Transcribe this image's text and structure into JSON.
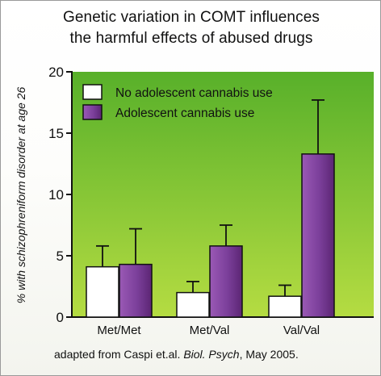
{
  "chart_data": {
    "type": "bar",
    "title_lines": [
      "Genetic variation in COMT influences",
      "the harmful effects of abused drugs"
    ],
    "ylabel": "% with schizophreniform disorder at age 26",
    "xlabel": "",
    "categories": [
      "Met/Met",
      "Met/Val",
      "Val/Val"
    ],
    "ylim": [
      0,
      20
    ],
    "yticks": [
      "0",
      "5",
      "10",
      "15",
      "20"
    ],
    "grid": false,
    "legend_position": "top-left",
    "series": [
      {
        "name": "No adolescent cannabis use",
        "values": [
          4.1,
          2.0,
          1.7
        ],
        "error": [
          1.7,
          0.9,
          0.9
        ],
        "color": "#ffffff"
      },
      {
        "name": "Adolescent cannabis use",
        "values": [
          4.3,
          5.8,
          13.3
        ],
        "error": [
          2.9,
          1.7,
          4.4
        ],
        "color": "#7b3f9a"
      }
    ],
    "colors": {
      "plot_background_top": "#58b02a",
      "plot_background_bottom": "#b5dc42",
      "bar_purple_light": "#9a59b5",
      "bar_purple_dark": "#5b2573",
      "axis": "#111111"
    }
  },
  "footnote": {
    "prefix": "adapted from Caspi et.al. ",
    "journal": "Biol. Psych",
    "suffix": ", May 2005."
  }
}
